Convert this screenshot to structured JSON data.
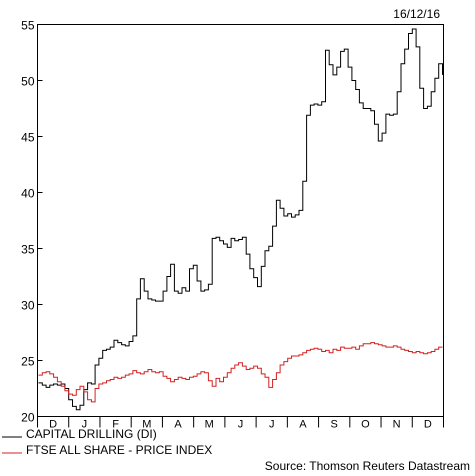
{
  "chart_data": {
    "type": "line",
    "date_label": "16/12/16",
    "source": "Source: Thomson Reuters Datastream",
    "ylim": [
      20,
      55
    ],
    "yticks": [
      20,
      25,
      30,
      35,
      40,
      45,
      50,
      55
    ],
    "month_labels": [
      "D",
      "J",
      "F",
      "M",
      "A",
      "M",
      "J",
      "J",
      "A",
      "S",
      "O",
      "N",
      "D"
    ],
    "series": [
      {
        "name": "CAPITAL DRILLING (DI)",
        "color": "#000000",
        "values": [
          23.0,
          22.8,
          22.6,
          22.8,
          22.9,
          22.8,
          22.9,
          22.5,
          21.5,
          20.9,
          20.6,
          21.0,
          22.4,
          23.0,
          22.9,
          24.6,
          25.2,
          25.9,
          26.0,
          26.2,
          26.8,
          26.6,
          26.4,
          26.3,
          26.7,
          27.2,
          30.5,
          32.3,
          31.2,
          30.5,
          30.4,
          30.3,
          30.3,
          31.2,
          32.5,
          33.6,
          31.2,
          31.0,
          31.5,
          31.2,
          33.2,
          33.5,
          32.1,
          31.2,
          31.3,
          31.8,
          35.9,
          36.0,
          35.7,
          35.4,
          35.1,
          35.9,
          35.7,
          35.8,
          36.0,
          34.5,
          33.2,
          32.4,
          31.6,
          33.4,
          34.8,
          35.2,
          37.0,
          39.3,
          38.6,
          37.9,
          38.1,
          37.8,
          38.0,
          38.4,
          41.0,
          46.9,
          47.8,
          47.9,
          47.8,
          48.1,
          52.7,
          51.4,
          50.5,
          51.2,
          52.6,
          52.8,
          51.2,
          50.0,
          49.2,
          48.0,
          47.5,
          47.5,
          47.3,
          46.1,
          44.6,
          45.3,
          47.0,
          46.9,
          47.0,
          49.0,
          51.5,
          52.8,
          54.2,
          54.6,
          53.0,
          49.3,
          47.5,
          47.7,
          49.0,
          50.2,
          51.5,
          50.5
        ]
      },
      {
        "name": "FTSE ALL SHARE - PRICE INDEX",
        "color": "#d42020",
        "values": [
          23.7,
          23.9,
          24.0,
          23.8,
          23.5,
          23.1,
          22.7,
          22.3,
          22.0,
          21.9,
          22.4,
          22.7,
          22.2,
          21.5,
          21.3,
          22.5,
          22.9,
          23.0,
          23.2,
          23.3,
          23.5,
          23.4,
          23.5,
          23.7,
          23.8,
          24.1,
          23.9,
          23.8,
          24.0,
          24.2,
          24.0,
          23.9,
          24.0,
          23.6,
          23.4,
          23.1,
          23.3,
          23.5,
          23.4,
          23.3,
          23.5,
          23.6,
          23.8,
          24.0,
          23.9,
          23.2,
          22.7,
          23.4,
          23.1,
          23.5,
          23.9,
          24.3,
          24.6,
          24.8,
          24.5,
          24.2,
          24.3,
          24.5,
          24.3,
          23.8,
          23.5,
          22.6,
          23.3,
          23.9,
          24.6,
          24.9,
          25.2,
          25.4,
          25.4,
          25.5,
          25.7,
          25.9,
          26.0,
          26.1,
          26.0,
          25.8,
          25.9,
          25.7,
          26.0,
          25.9,
          26.2,
          26.1,
          26.1,
          26.2,
          26.0,
          26.3,
          26.5,
          26.5,
          26.6,
          26.5,
          26.4,
          26.3,
          26.2,
          26.2,
          26.3,
          26.2,
          26.0,
          25.9,
          25.8,
          25.7,
          25.8,
          25.7,
          25.6,
          25.7,
          25.8,
          26.0,
          26.2,
          26.2
        ]
      }
    ]
  }
}
